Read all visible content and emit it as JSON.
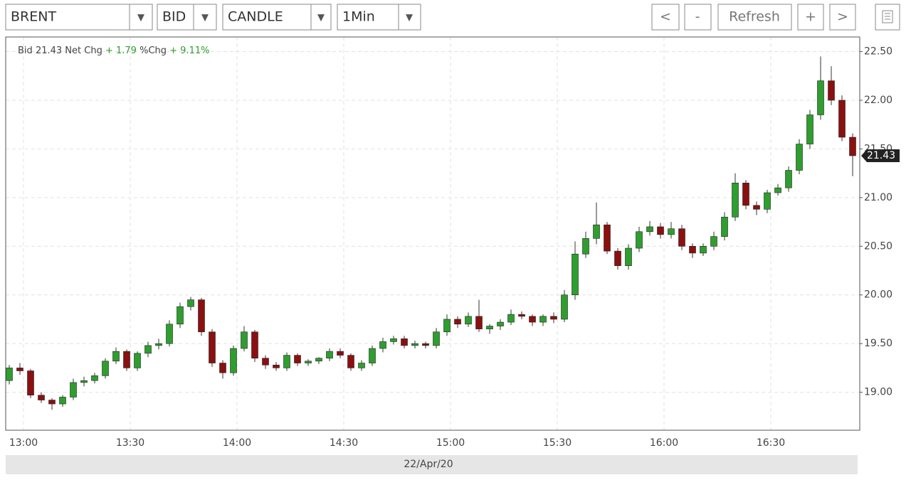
{
  "toolbar": {
    "symbol": "BRENT",
    "side": "BID",
    "style": "CANDLE",
    "interval": "1Min",
    "buttons": [
      "<",
      "-",
      "Refresh",
      "+",
      ">"
    ]
  },
  "chart_data": {
    "type": "candlestick",
    "header": {
      "bid_label": "Bid",
      "net_label": "Net Chg",
      "net_value": "+ 1.79",
      "pct_label": "%Chg",
      "pct_value": "+ 9.11%"
    },
    "x_label": "22/Apr/20",
    "x": [
      "12:56",
      "12:59",
      "13:02",
      "13:05",
      "13:08",
      "13:11",
      "13:14",
      "13:17",
      "13:20",
      "13:23",
      "13:26",
      "13:29",
      "13:32",
      "13:35",
      "13:38",
      "13:41",
      "13:44",
      "13:47",
      "13:50",
      "13:53",
      "13:56",
      "13:59",
      "14:02",
      "14:05",
      "14:08",
      "14:11",
      "14:14",
      "14:17",
      "14:20",
      "14:23",
      "14:26",
      "14:29",
      "14:32",
      "14:35",
      "14:38",
      "14:41",
      "14:44",
      "14:47",
      "14:50",
      "14:53",
      "14:56",
      "14:59",
      "15:02",
      "15:05",
      "15:08",
      "15:11",
      "15:14",
      "15:17",
      "15:20",
      "15:23",
      "15:26",
      "15:29",
      "15:32",
      "15:35",
      "15:38",
      "15:41",
      "15:44",
      "15:47",
      "15:50",
      "15:53",
      "15:56",
      "15:59",
      "16:02",
      "16:05",
      "16:08",
      "16:11",
      "16:14",
      "16:17",
      "16:20",
      "16:23",
      "16:26",
      "16:29",
      "16:32",
      "16:35",
      "16:38",
      "16:41",
      "16:44",
      "16:47",
      "16:50",
      "16:53"
    ],
    "open": [
      19.12,
      19.25,
      19.22,
      18.97,
      18.92,
      18.88,
      18.95,
      19.1,
      19.12,
      19.17,
      19.32,
      19.42,
      19.25,
      19.4,
      19.48,
      19.5,
      19.7,
      19.88,
      19.95,
      19.62,
      19.3,
      19.2,
      19.45,
      19.62,
      19.35,
      19.28,
      19.25,
      19.38,
      19.3,
      19.32,
      19.35,
      19.42,
      19.38,
      19.25,
      19.3,
      19.45,
      19.52,
      19.55,
      19.48,
      19.5,
      19.48,
      19.62,
      19.75,
      19.7,
      19.78,
      19.65,
      19.68,
      19.72,
      19.8,
      19.78,
      19.72,
      19.78,
      19.75,
      20.0,
      20.42,
      20.58,
      20.72,
      20.45,
      20.3,
      20.48,
      20.65,
      20.7,
      20.62,
      20.68,
      20.5,
      20.43,
      20.5,
      20.6,
      20.8,
      21.15,
      20.92,
      20.88,
      21.05,
      21.1,
      21.28,
      21.55,
      21.85,
      22.2,
      22.0,
      21.62
    ],
    "high": [
      19.28,
      19.3,
      19.24,
      19.0,
      18.94,
      18.97,
      19.14,
      19.16,
      19.2,
      19.35,
      19.46,
      19.44,
      19.42,
      19.52,
      19.55,
      19.74,
      19.92,
      19.98,
      19.97,
      19.65,
      19.33,
      19.48,
      19.68,
      19.64,
      19.38,
      19.31,
      19.41,
      19.4,
      19.34,
      19.36,
      19.45,
      19.45,
      19.4,
      19.33,
      19.48,
      19.56,
      19.58,
      19.58,
      19.53,
      19.52,
      19.66,
      19.8,
      19.78,
      19.82,
      19.95,
      19.7,
      19.75,
      19.85,
      19.83,
      19.8,
      19.8,
      19.82,
      20.05,
      20.55,
      20.65,
      20.95,
      20.75,
      20.48,
      20.52,
      20.7,
      20.76,
      20.74,
      20.75,
      20.72,
      20.53,
      20.53,
      20.65,
      20.85,
      21.25,
      21.18,
      20.96,
      21.08,
      21.14,
      21.32,
      21.6,
      21.9,
      22.45,
      22.35,
      22.05,
      21.66
    ],
    "low": [
      19.08,
      19.18,
      18.94,
      18.89,
      18.82,
      18.85,
      18.92,
      19.06,
      19.09,
      19.14,
      19.29,
      19.22,
      19.22,
      19.36,
      19.44,
      19.47,
      19.66,
      19.84,
      19.58,
      19.26,
      19.14,
      19.17,
      19.42,
      19.31,
      19.24,
      19.22,
      19.22,
      19.27,
      19.27,
      19.29,
      19.32,
      19.35,
      19.22,
      19.22,
      19.27,
      19.41,
      19.49,
      19.45,
      19.45,
      19.45,
      19.45,
      19.58,
      19.66,
      19.67,
      19.62,
      19.6,
      19.64,
      19.69,
      19.75,
      19.68,
      19.68,
      19.71,
      19.72,
      19.95,
      20.38,
      20.52,
      20.42,
      20.26,
      20.26,
      20.44,
      20.61,
      20.58,
      20.58,
      20.46,
      20.38,
      20.4,
      20.46,
      20.56,
      20.76,
      20.88,
      20.82,
      20.84,
      21.02,
      21.06,
      21.24,
      21.5,
      21.8,
      21.95,
      21.58,
      21.22
    ],
    "close": [
      19.25,
      19.22,
      18.97,
      18.92,
      18.88,
      18.95,
      19.1,
      19.12,
      19.17,
      19.32,
      19.42,
      19.25,
      19.4,
      19.48,
      19.5,
      19.7,
      19.88,
      19.95,
      19.62,
      19.3,
      19.2,
      19.45,
      19.62,
      19.35,
      19.28,
      19.25,
      19.38,
      19.3,
      19.32,
      19.35,
      19.42,
      19.38,
      19.25,
      19.3,
      19.45,
      19.52,
      19.55,
      19.48,
      19.5,
      19.48,
      19.62,
      19.75,
      19.7,
      19.78,
      19.65,
      19.68,
      19.72,
      19.8,
      19.78,
      19.72,
      19.78,
      19.75,
      20.0,
      20.42,
      20.58,
      20.72,
      20.45,
      20.3,
      20.48,
      20.65,
      20.7,
      20.62,
      20.68,
      20.5,
      20.43,
      20.5,
      20.6,
      20.8,
      21.15,
      20.92,
      20.88,
      21.05,
      21.1,
      21.28,
      21.55,
      21.85,
      22.2,
      22.0,
      21.62,
      21.43
    ],
    "up_color": "#2e9e2e",
    "down_color": "#8b1010",
    "xlim": [
      "12:55",
      "16:55"
    ],
    "xticks": [
      "13:00",
      "13:30",
      "14:00",
      "14:30",
      "15:00",
      "15:30",
      "16:00",
      "16:30"
    ],
    "ylim": [
      18.61,
      22.65
    ],
    "yticks": [
      {
        "value": 19,
        "label": "19.00"
      },
      {
        "value": 19.5,
        "label": "19.50"
      },
      {
        "value": 20,
        "label": "20.00"
      },
      {
        "value": 20.5,
        "label": "20.50"
      },
      {
        "value": 21,
        "label": "21.00"
      },
      {
        "value": 21.5,
        "label": "21.50"
      },
      {
        "value": 22,
        "label": "22.00"
      },
      {
        "value": 22.5,
        "label": "22.50"
      }
    ],
    "grid": true
  }
}
